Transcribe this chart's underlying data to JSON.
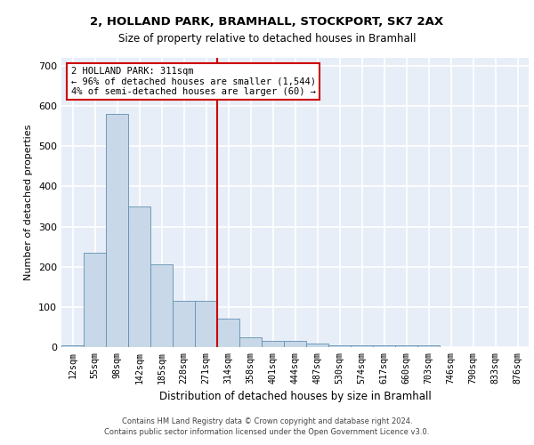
{
  "title_line1": "2, HOLLAND PARK, BRAMHALL, STOCKPORT, SK7 2AX",
  "title_line2": "Size of property relative to detached houses in Bramhall",
  "xlabel": "Distribution of detached houses by size in Bramhall",
  "ylabel": "Number of detached properties",
  "footer_line1": "Contains HM Land Registry data © Crown copyright and database right 2024.",
  "footer_line2": "Contains public sector information licensed under the Open Government Licence v3.0.",
  "bin_labels": [
    "12sqm",
    "55sqm",
    "98sqm",
    "142sqm",
    "185sqm",
    "228sqm",
    "271sqm",
    "314sqm",
    "358sqm",
    "401sqm",
    "444sqm",
    "487sqm",
    "530sqm",
    "574sqm",
    "617sqm",
    "660sqm",
    "703sqm",
    "746sqm",
    "790sqm",
    "833sqm",
    "876sqm"
  ],
  "bar_heights": [
    5,
    235,
    580,
    350,
    205,
    115,
    115,
    72,
    25,
    15,
    15,
    8,
    5,
    5,
    5,
    5,
    4,
    0,
    0,
    0,
    0
  ],
  "bar_color": "#c8d8e8",
  "bar_edge_color": "#6090b0",
  "bg_color": "#e8eef8",
  "grid_color": "#ffffff",
  "vline_bin": 7,
  "vline_color": "#cc0000",
  "annotation_text": "2 HOLLAND PARK: 311sqm\n← 96% of detached houses are smaller (1,544)\n4% of semi-detached houses are larger (60) →",
  "annotation_box_color": "#ffffff",
  "annotation_box_edge": "#cc0000",
  "ylim": [
    0,
    720
  ],
  "yticks": [
    0,
    100,
    200,
    300,
    400,
    500,
    600,
    700
  ]
}
